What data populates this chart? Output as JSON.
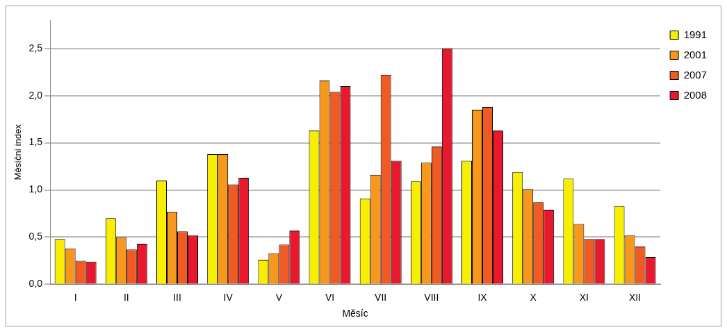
{
  "chart_data": {
    "type": "bar",
    "xlabel": "Měsíc",
    "ylabel": "Měsíční index",
    "categories": [
      "I",
      "II",
      "III",
      "IV",
      "V",
      "VI",
      "VII",
      "VIII",
      "IX",
      "X",
      "XI",
      "XII"
    ],
    "series": [
      {
        "name": "1991",
        "color": "#f7ee00",
        "values": [
          0.48,
          0.7,
          1.1,
          1.38,
          0.26,
          1.63,
          0.91,
          1.09,
          1.31,
          1.19,
          1.12,
          0.83
        ]
      },
      {
        "name": "2001",
        "color": "#f7981c",
        "values": [
          0.38,
          0.5,
          0.77,
          1.38,
          0.33,
          2.16,
          1.16,
          1.29,
          1.85,
          1.01,
          0.64,
          0.52
        ]
      },
      {
        "name": "2007",
        "color": "#f15a22",
        "values": [
          0.25,
          0.37,
          0.56,
          1.06,
          0.42,
          2.04,
          2.22,
          1.46,
          1.88,
          0.87,
          0.48,
          0.4
        ]
      },
      {
        "name": "2008",
        "color": "#e8192c",
        "values": [
          0.24,
          0.43,
          0.52,
          1.13,
          0.57,
          2.1,
          1.31,
          2.5,
          1.63,
          0.79,
          0.48,
          0.29
        ]
      }
    ],
    "ylim": [
      0,
      2.8
    ],
    "yticks": [
      {
        "value": 0,
        "label": "0,0"
      },
      {
        "value": 0.5,
        "label": "0,5"
      },
      {
        "value": 1,
        "label": "1,0"
      },
      {
        "value": 1.5,
        "label": "1,5"
      },
      {
        "value": 2,
        "label": "2,0"
      },
      {
        "value": 2.5,
        "label": "2,5"
      }
    ],
    "grid": "y",
    "legend": "top right"
  }
}
